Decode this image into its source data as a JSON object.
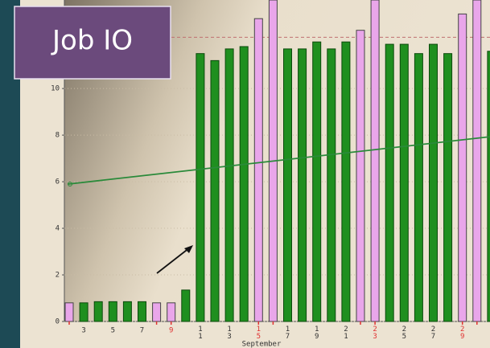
{
  "chart_data": {
    "type": "bar",
    "title": "Job IO",
    "x_label": "September",
    "categories": [
      null,
      "3",
      null,
      "5",
      null,
      "7",
      null,
      "9",
      null,
      "11",
      null,
      "13",
      null,
      "15",
      null,
      "17",
      null,
      "19",
      null,
      "21",
      null,
      "23",
      null,
      "25",
      null,
      "27",
      null,
      "29",
      null,
      null
    ],
    "values": [
      0.8,
      0.8,
      0.85,
      0.85,
      0.85,
      0.85,
      0.8,
      0.8,
      1.35,
      11.5,
      11.2,
      11.7,
      11.8,
      13.0,
      13.8,
      11.7,
      11.7,
      12.0,
      11.7,
      12.0,
      12.5,
      13.8,
      11.9,
      11.9,
      11.5,
      11.9,
      11.5,
      13.2,
      13.8,
      11.6
    ],
    "colors": [
      "#e9a6ea",
      "#1f8f1f",
      "#1f8f1f",
      "#1f8f1f",
      "#1f8f1f",
      "#1f8f1f",
      "#e9a6ea",
      "#e9a6ea",
      "#1f8f1f",
      "#1f8f1f",
      "#1f8f1f",
      "#1f8f1f",
      "#1f8f1f",
      "#e9a6ea",
      "#e9a6ea",
      "#1f8f1f",
      "#1f8f1f",
      "#1f8f1f",
      "#1f8f1f",
      "#1f8f1f",
      "#e9a6ea",
      "#e9a6ea",
      "#1f8f1f",
      "#1f8f1f",
      "#1f8f1f",
      "#1f8f1f",
      "#1f8f1f",
      "#e9a6ea",
      "#e9a6ea",
      "#1f8f1f"
    ],
    "highlight_label_color": "#e03030",
    "ylim": [
      0,
      13.8
    ],
    "yticks": [
      0,
      2,
      4,
      6,
      8,
      10
    ],
    "reference_line": 12.2,
    "trend_line": {
      "start": 5.9,
      "end": 7.93,
      "color": "#2a8a3a"
    }
  }
}
